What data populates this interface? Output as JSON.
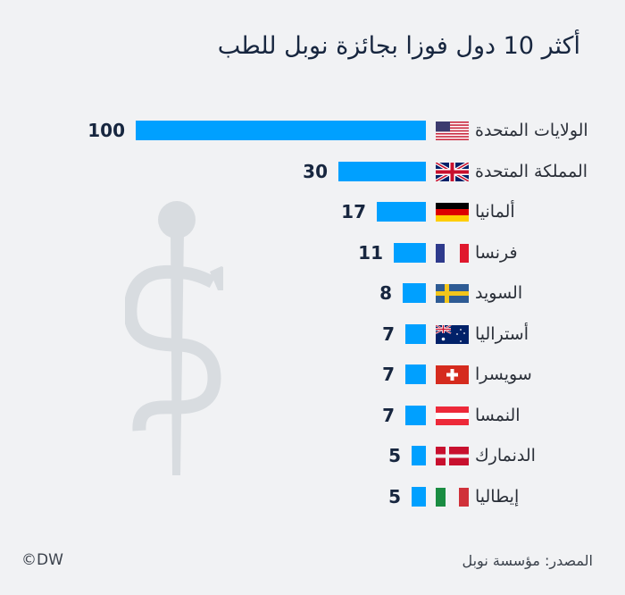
{
  "header": {
    "title": "أكثر 10 دول فوزا بجائزة نوبل للطب"
  },
  "footer": {
    "source": "المصدر: مؤسسة نوبل",
    "copyright": "©DW"
  },
  "colors": {
    "bar": "#00a0ff",
    "background": "#f1f2f4",
    "text_dark": "#17263f",
    "emblem": "#d8dce0"
  },
  "icons": {
    "background_emblem": "rod-of-asclepius-icon"
  },
  "rows": [
    {
      "label": "الولايات المتحدة",
      "value": "100",
      "flag": "us-flag-icon"
    },
    {
      "label": "المملكة المتحدة",
      "value": "30",
      "flag": "uk-flag-icon"
    },
    {
      "label": "ألمانيا",
      "value": "17",
      "flag": "germany-flag-icon"
    },
    {
      "label": "فرنسا",
      "value": "11",
      "flag": "france-flag-icon"
    },
    {
      "label": "السويد",
      "value": "8",
      "flag": "sweden-flag-icon"
    },
    {
      "label": "أستراليا",
      "value": "7",
      "flag": "australia-flag-icon"
    },
    {
      "label": "سويسرا",
      "value": "7",
      "flag": "switzerland-flag-icon"
    },
    {
      "label": "النمسا",
      "value": "7",
      "flag": "austria-flag-icon"
    },
    {
      "label": "الدنمارك",
      "value": "5",
      "flag": "denmark-flag-icon"
    },
    {
      "label": "إيطاليا",
      "value": "5",
      "flag": "italy-flag-icon"
    }
  ],
  "chart_data": {
    "type": "bar",
    "orientation": "horizontal",
    "title": "أكثر 10 دول فوزا بجائزة نوبل للطب",
    "categories": [
      "الولايات المتحدة",
      "المملكة المتحدة",
      "ألمانيا",
      "فرنسا",
      "السويد",
      "أستراليا",
      "سويسرا",
      "النمسا",
      "الدنمارك",
      "إيطاليا"
    ],
    "values": [
      100,
      30,
      17,
      11,
      8,
      7,
      7,
      7,
      5,
      5
    ],
    "xlabel": "",
    "ylabel": "",
    "grid": false,
    "legend": null,
    "data_labels": true,
    "source": "المصدر: مؤسسة نوبل",
    "annotations": [
      "©DW"
    ]
  }
}
